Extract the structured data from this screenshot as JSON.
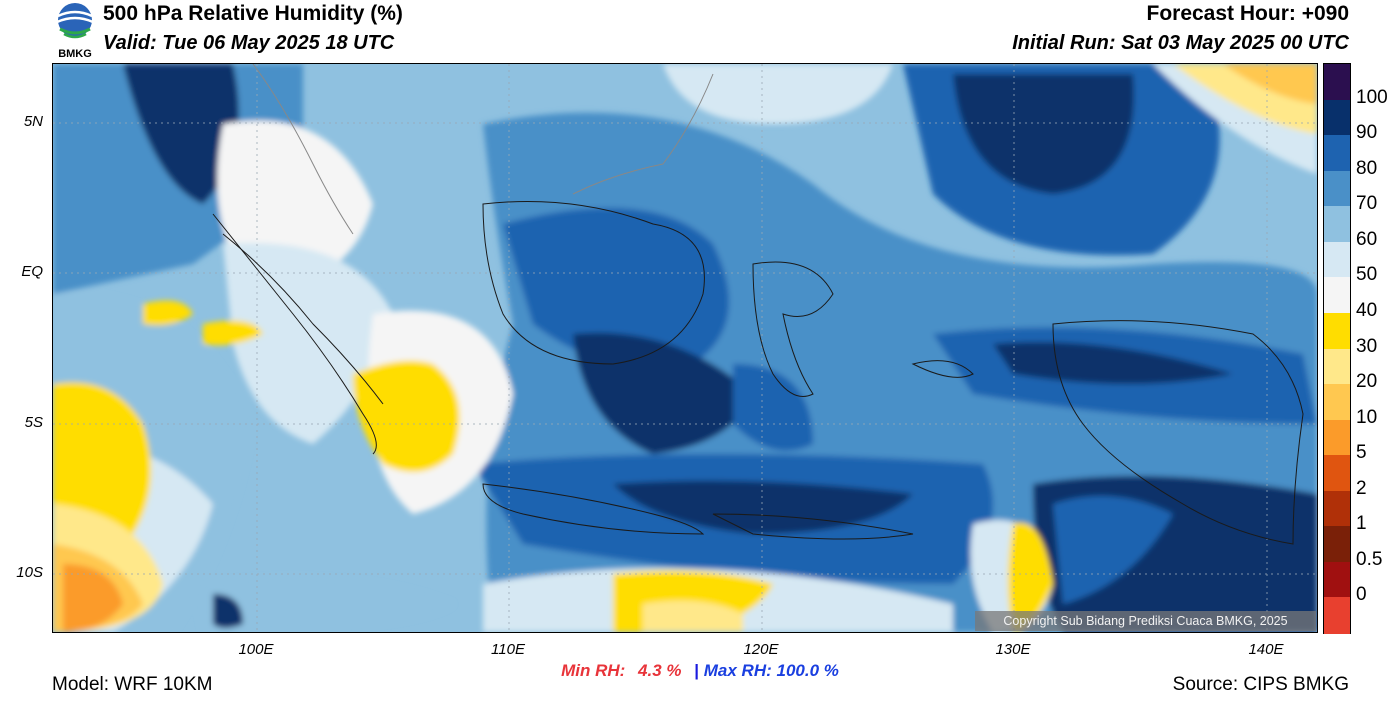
{
  "header": {
    "title": "500 hPa Relative Humidity (%)",
    "valid": "Valid: Tue 06 May 2025 18 UTC",
    "forecast_hour": "Forecast Hour: +090",
    "initial_run": "Initial Run: Sat 03 May 2025 00 UTC",
    "logo_text": "BMKG"
  },
  "map": {
    "lat_labels": [
      "5N",
      "EQ",
      "5S",
      "10S"
    ],
    "lon_labels": [
      "100E",
      "110E",
      "120E",
      "130E",
      "140E"
    ],
    "copyright": "Copyright Sub Bidang Prediksi Cuaca BMKG, 2025"
  },
  "colorbar": {
    "labels": [
      "100",
      "90",
      "80",
      "70",
      "60",
      "50",
      "40",
      "30",
      "20",
      "10",
      "5",
      "2",
      "1",
      "0.5",
      "0"
    ],
    "colors": [
      "#2b0f4f",
      "#08306b",
      "#1e63b0",
      "#4a90c8",
      "#8fc1e0",
      "#d6e8f3",
      "#f5f5f5",
      "#ffdd00",
      "#ffe88a",
      "#ffc850",
      "#fb9b2a",
      "#e05510",
      "#b03008",
      "#7a2008",
      "#a01010",
      "#e8402f"
    ]
  },
  "stats": {
    "min_label": "Min RH:",
    "min_value": "4.3 %",
    "separator": "|",
    "max_label": "Max RH:",
    "max_value": "100.0 %"
  },
  "footer": {
    "model": "Model: WRF 10KM",
    "source": "Source: CIPS BMKG"
  }
}
